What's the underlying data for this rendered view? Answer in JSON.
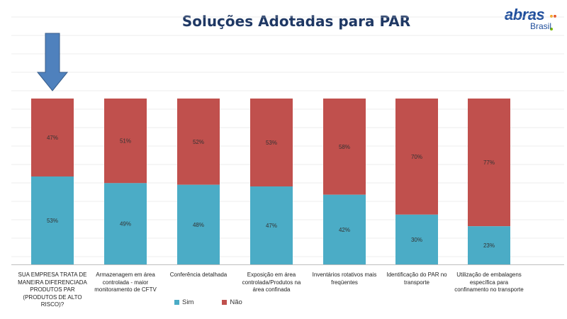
{
  "header": {
    "title": "Soluções Adotadas para PAR",
    "logo_text": "abras",
    "logo_subtext": "Brasil"
  },
  "colors": {
    "sim": "#4bacc6",
    "nao": "#c0504d",
    "arrow": "#4f81bd",
    "title": "#1f3864",
    "gridline": "#d9d9d9"
  },
  "icons": {
    "highlight_arrow": "down-arrow-icon"
  },
  "chart_data": {
    "type": "bar",
    "stacked": true,
    "percent_stacked": true,
    "title": "Soluções Adotadas para PAR",
    "categories": [
      "SUA EMPRESA TRATA DE MANEIRA DIFERENCIADA PRODUTOS PAR (PRODUTOS DE ALTO RISCO)?",
      "Armazenagem em área controlada - maior monitoramento de CFTV",
      "Conferência detalhada",
      "Exposição em área controlada/Produtos na área confinada",
      "Inventários rotativos mais freqüentes",
      "Identificação do PAR no transporte",
      "Utilização de embalagens específica para confinamento no transporte"
    ],
    "series": [
      {
        "name": "Sim",
        "values": [
          53,
          49,
          48,
          47,
          42,
          30,
          23
        ],
        "labels": [
          "53%",
          "49%",
          "48%",
          "47%",
          "42%",
          "30%",
          "23%"
        ]
      },
      {
        "name": "Não",
        "values": [
          47,
          51,
          52,
          53,
          58,
          70,
          77
        ],
        "labels": [
          "47%",
          "51%",
          "52%",
          "53%",
          "58%",
          "70%",
          "77%"
        ]
      }
    ],
    "ylim": [
      0,
      100
    ],
    "grid": true,
    "legend": "bottom-left"
  }
}
